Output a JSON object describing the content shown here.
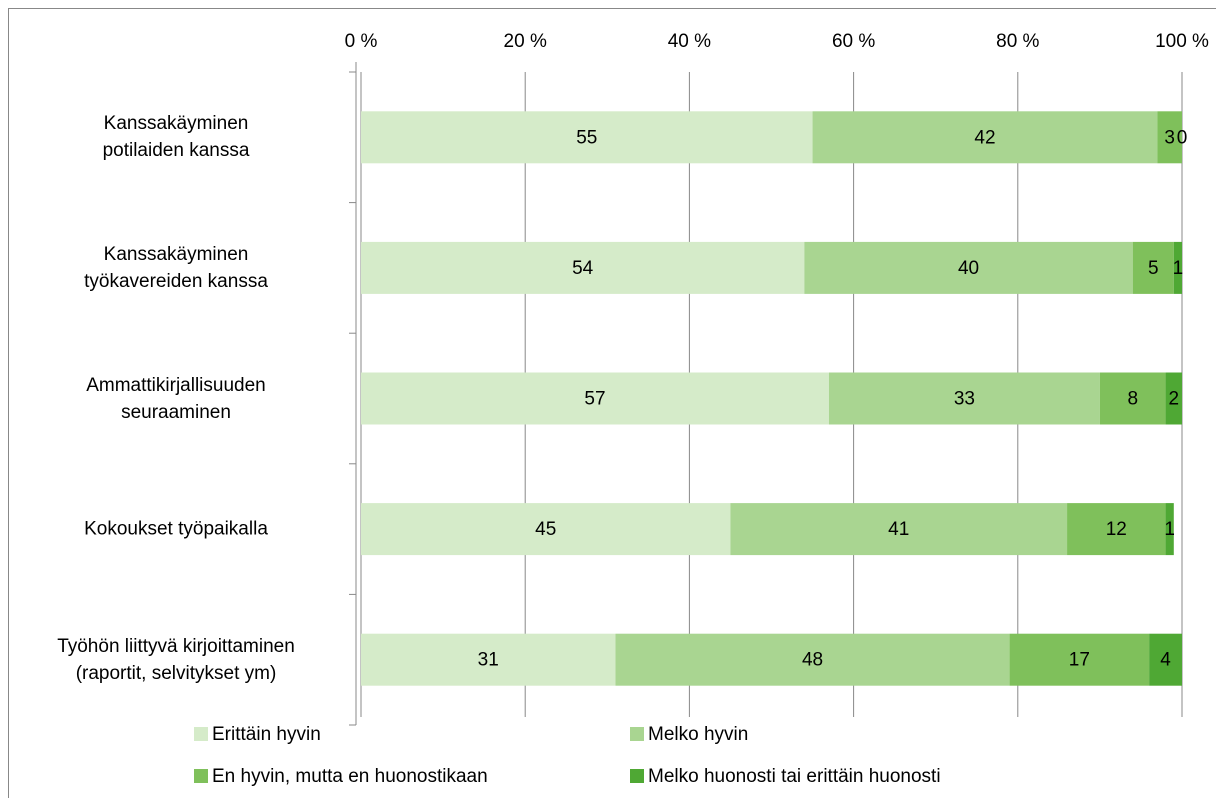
{
  "chart_data": {
    "type": "stacked-bar-horizontal",
    "categories": [
      "Kanssakäyminen\npotilaiden kanssa",
      "Kanssakäyminen\ntyökavereiden kanssa",
      "Ammattikirjallisuuden\nseuraaminen",
      "Kokoukset työpaikalla",
      "Työhön liittyvä kirjoittaminen\n(raportit, selvitykset ym)"
    ],
    "series": [
      {
        "name": "Erittäin hyvin",
        "color": "#d5ebc9",
        "values": [
          55,
          54,
          57,
          45,
          31
        ]
      },
      {
        "name": "Melko hyvin",
        "color": "#a9d591",
        "values": [
          42,
          40,
          33,
          41,
          48
        ]
      },
      {
        "name": "En hyvin, mutta en huonostikaan",
        "color": "#7fc05b",
        "values": [
          3,
          5,
          8,
          12,
          17
        ]
      },
      {
        "name": "Melko huonosti tai erittäin huonosti",
        "color": "#4fa834",
        "values": [
          0,
          1,
          2,
          1,
          4
        ]
      }
    ],
    "xlim": [
      0,
      100
    ],
    "xticks": [
      {
        "value": 0,
        "label": "0 %"
      },
      {
        "value": 20,
        "label": "20 %"
      },
      {
        "value": 40,
        "label": "40 %"
      },
      {
        "value": 60,
        "label": "60 %"
      },
      {
        "value": 80,
        "label": "80 %"
      },
      {
        "value": 100,
        "label": "100 %"
      }
    ],
    "grid": true
  }
}
